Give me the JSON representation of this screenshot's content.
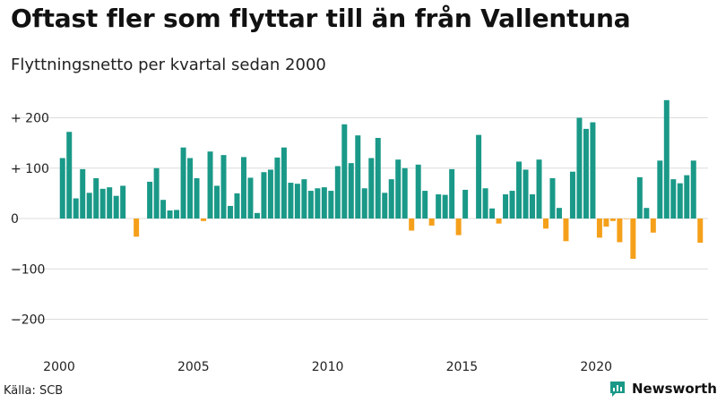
{
  "chart_data": {
    "type": "bar",
    "title": "Oftast fler som flyttar till än från Vallentuna",
    "subtitle": "Flyttningsnetto per kvartal sedan 2000",
    "x_start": "2000 Q1",
    "x_frequency": "quarterly",
    "x_tick_labels": [
      "2000",
      "2005",
      "2010",
      "2015",
      "2020"
    ],
    "y_tick_labels": [
      "+ 200",
      "+ 100",
      "0",
      "−100",
      "−200"
    ],
    "y_ticks": [
      200,
      100,
      0,
      -100,
      -200
    ],
    "ylim": [
      -220,
      245
    ],
    "grid": true,
    "colors": {
      "positive": "#1a9988",
      "negative": "#f5a01a"
    },
    "values": [
      120,
      172,
      40,
      98,
      51,
      80,
      59,
      62,
      45,
      65,
      0,
      -36,
      0,
      73,
      100,
      37,
      16,
      17,
      141,
      120,
      80,
      -5,
      133,
      65,
      126,
      25,
      50,
      122,
      81,
      11,
      92,
      97,
      121,
      141,
      71,
      69,
      78,
      55,
      60,
      62,
      55,
      104,
      187,
      110,
      165,
      60,
      120,
      160,
      51,
      78,
      117,
      100,
      -24,
      107,
      55,
      -14,
      48,
      47,
      98,
      -33,
      57,
      0,
      166,
      60,
      20,
      -10,
      48,
      55,
      113,
      97,
      48,
      117,
      -20,
      80,
      21,
      -45,
      93,
      200,
      178,
      191,
      -38,
      -16,
      -5,
      -47,
      -1,
      -80,
      82,
      21,
      -28,
      115,
      235,
      78,
      70,
      86,
      115,
      -48
    ]
  },
  "footer": {
    "source": "Källa: SCB",
    "brand": "Newsworthy"
  }
}
